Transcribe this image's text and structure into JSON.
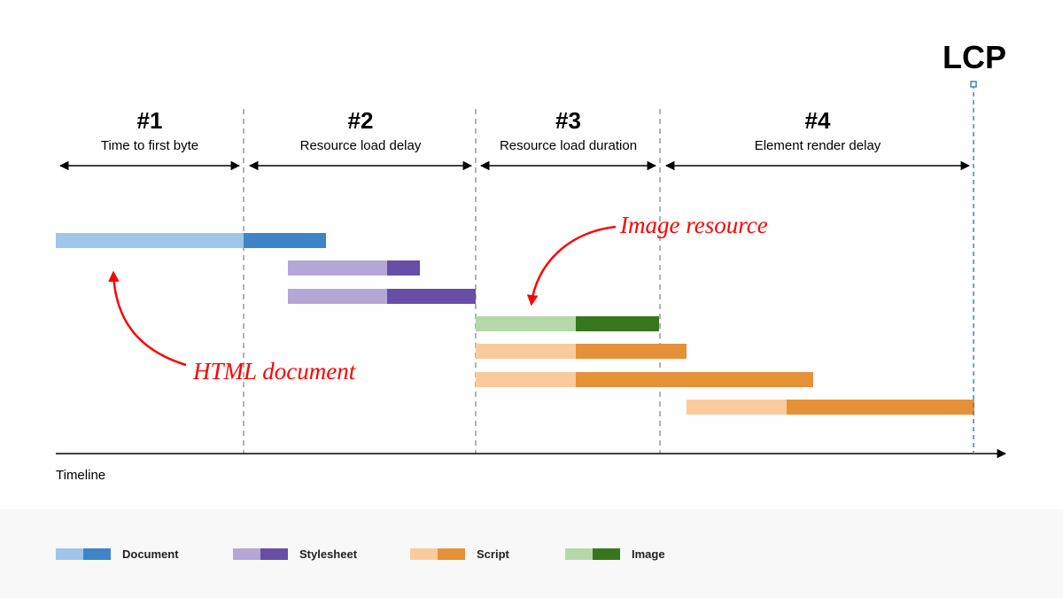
{
  "lcp_label": "LCP",
  "phases": [
    {
      "number": "#1",
      "label": "Time to first byte"
    },
    {
      "number": "#2",
      "label": "Resource load delay"
    },
    {
      "number": "#3",
      "label": "Resource load duration"
    },
    {
      "number": "#4",
      "label": "Element render delay"
    }
  ],
  "axis_label": "Timeline",
  "annotations": {
    "image": "Image resource",
    "html": "HTML document"
  },
  "bars": [
    "document",
    "stylesheet",
    "stylesheet",
    "image",
    "script",
    "script",
    "script"
  ],
  "legend": [
    {
      "type": "document",
      "label": "Document"
    },
    {
      "type": "stylesheet",
      "label": "Stylesheet"
    },
    {
      "type": "script",
      "label": "Script"
    },
    {
      "type": "image",
      "label": "Image"
    }
  ],
  "colors": {
    "document": [
      "#9fc5e8",
      "#3d85c6"
    ],
    "stylesheet": [
      "#b4a7d6",
      "#674ea7"
    ],
    "script": [
      "#f9cb9c",
      "#e69138"
    ],
    "image": [
      "#b6d7a8",
      "#38761d"
    ],
    "annotation": "#ff0000",
    "lcp": "#3d85c6"
  }
}
